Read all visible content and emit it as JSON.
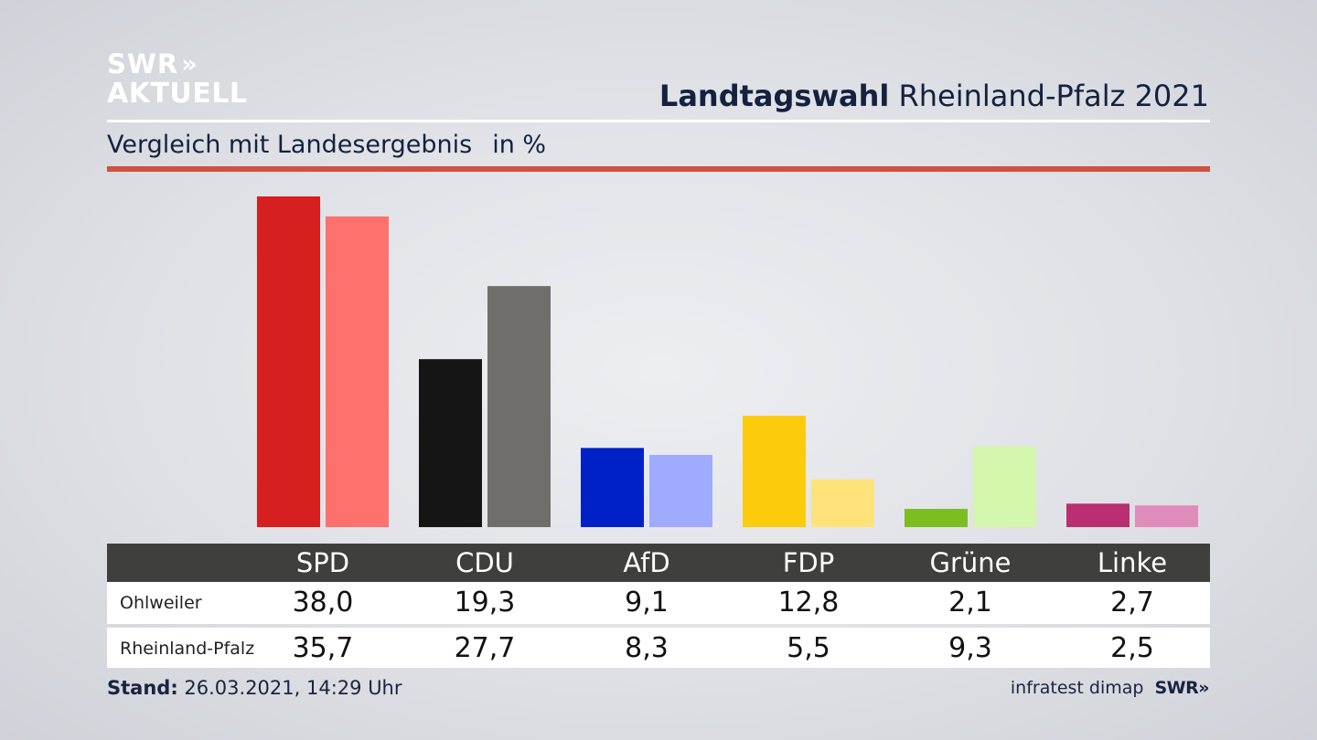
{
  "header": {
    "logo_line1": "SWR",
    "logo_arrows": "»",
    "logo_line2": "AKTUELL",
    "title_bold": "Landtagswahl",
    "title_rest": "Rheinland-Pfalz 2021",
    "subtitle": "Vergleich mit Landesergebnis",
    "unit": "in %"
  },
  "chart_data": {
    "type": "bar",
    "title": "Landtagswahl Rheinland-Pfalz 2021",
    "subtitle": "Vergleich mit Landesergebnis in %",
    "categories": [
      "SPD",
      "CDU",
      "AfD",
      "FDP",
      "Grüne",
      "Linke"
    ],
    "series": [
      {
        "name": "Ohlweiler",
        "values": [
          38.0,
          19.3,
          9.1,
          12.8,
          2.1,
          2.7
        ],
        "labels": [
          "38,0",
          "19,3",
          "9,1",
          "12,8",
          "2,1",
          "2,7"
        ],
        "colors": [
          "#d61f1f",
          "#151515",
          "#0021c8",
          "#fccc0c",
          "#7cbd20",
          "#b92f72"
        ]
      },
      {
        "name": "Rheinland-Pfalz",
        "values": [
          35.7,
          27.7,
          8.3,
          5.5,
          9.3,
          2.5
        ],
        "labels": [
          "35,7",
          "27,7",
          "8,3",
          "5,5",
          "9,3",
          "2,5"
        ],
        "colors": [
          "#ff716c",
          "#706e6b",
          "#9fabff",
          "#ffe27a",
          "#d4f6ad",
          "#e08cbb"
        ]
      }
    ],
    "ylim": [
      0,
      38
    ],
    "grid": false,
    "legend": "table-below"
  },
  "footer": {
    "stand_label": "Stand:",
    "stand_value": "26.03.2021, 14:29 Uhr",
    "source": "infratest dimap",
    "source_logo": "SWR»"
  }
}
